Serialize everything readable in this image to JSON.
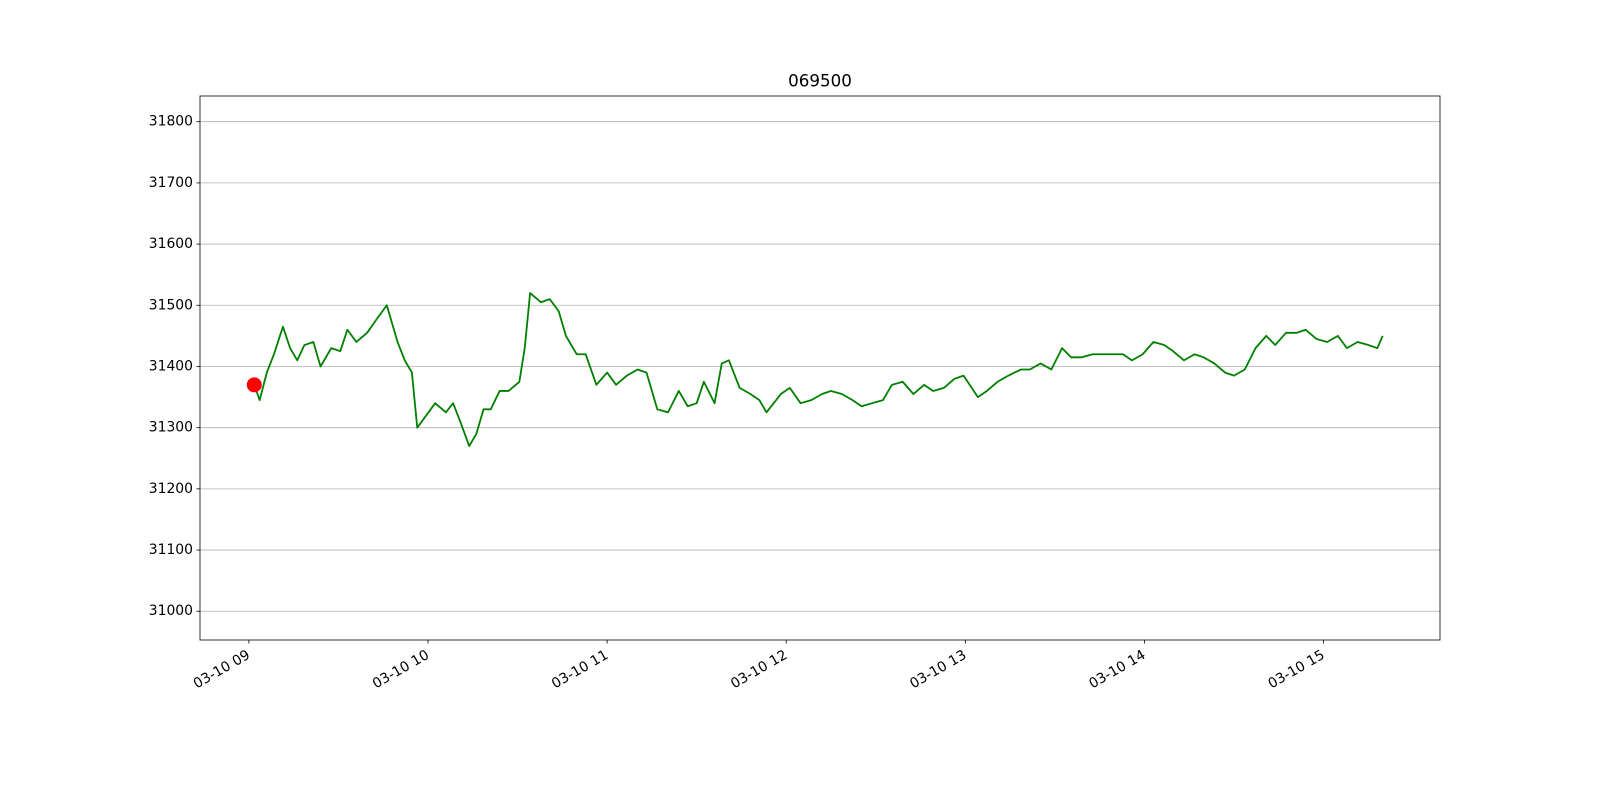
{
  "chart_data": {
    "type": "line",
    "title": "069500",
    "xlim": [
      8.727,
      15.65
    ],
    "xticks": [
      {
        "value": 9,
        "label": "03-10 09"
      },
      {
        "value": 10,
        "label": "03-10 10"
      },
      {
        "value": 11,
        "label": "03-10 11"
      },
      {
        "value": 12,
        "label": "03-10 12"
      },
      {
        "value": 13,
        "label": "03-10 13"
      },
      {
        "value": 14,
        "label": "03-10 14"
      },
      {
        "value": 15,
        "label": "03-10 15"
      }
    ],
    "ylim": [
      30953,
      31842
    ],
    "yticks": [
      31000,
      31100,
      31200,
      31300,
      31400,
      31500,
      31600,
      31700,
      31800
    ],
    "grid": "y",
    "series": [
      {
        "color": "#008000",
        "marker": "none",
        "x": [
          9.03,
          9.06,
          9.1,
          9.14,
          9.19,
          9.23,
          9.27,
          9.31,
          9.36,
          9.4,
          9.46,
          9.51,
          9.55,
          9.6,
          9.66,
          9.72,
          9.77,
          9.83,
          9.87,
          9.91,
          9.94,
          9.99,
          10.04,
          10.1,
          10.14,
          10.18,
          10.23,
          10.27,
          10.31,
          10.35,
          10.4,
          10.45,
          10.51,
          10.54,
          10.57,
          10.63,
          10.68,
          10.73,
          10.77,
          10.83,
          10.88,
          10.94,
          11.0,
          11.05,
          11.11,
          11.17,
          11.22,
          11.28,
          11.34,
          11.4,
          11.45,
          11.5,
          11.54,
          11.6,
          11.64,
          11.68,
          11.74,
          11.8,
          11.85,
          11.89,
          11.97,
          12.02,
          12.08,
          12.14,
          12.2,
          12.25,
          12.31,
          12.37,
          12.42,
          12.48,
          12.54,
          12.59,
          12.65,
          12.71,
          12.77,
          12.82,
          12.88,
          12.94,
          12.99,
          13.07,
          13.12,
          13.18,
          13.24,
          13.31,
          13.36,
          13.42,
          13.48,
          13.54,
          13.59,
          13.65,
          13.71,
          13.76,
          13.82,
          13.88,
          13.93,
          13.99,
          14.05,
          14.11,
          14.16,
          14.22,
          14.28,
          14.33,
          14.39,
          14.45,
          14.5,
          14.56,
          14.62,
          14.68,
          14.73,
          14.79,
          14.85,
          14.9,
          14.96,
          15.02,
          15.08,
          15.13,
          15.19,
          15.25,
          15.3,
          15.33
        ],
        "values": [
          31370,
          31345,
          31390,
          31420,
          31465,
          31430,
          31410,
          31435,
          31440,
          31400,
          31430,
          31425,
          31460,
          31440,
          31455,
          31480,
          31500,
          31440,
          31410,
          31390,
          31300,
          31320,
          31340,
          31325,
          31340,
          31310,
          31270,
          31290,
          31330,
          31330,
          31360,
          31360,
          31375,
          31430,
          31520,
          31505,
          31510,
          31490,
          31450,
          31420,
          31420,
          31370,
          31390,
          31370,
          31385,
          31395,
          31390,
          31330,
          31325,
          31360,
          31335,
          31340,
          31375,
          31340,
          31405,
          31410,
          31365,
          31355,
          31345,
          31325,
          31355,
          31365,
          31340,
          31345,
          31355,
          31360,
          31355,
          31345,
          31335,
          31340,
          31345,
          31370,
          31375,
          31355,
          31370,
          31360,
          31365,
          31380,
          31385,
          31350,
          31360,
          31375,
          31385,
          31395,
          31395,
          31405,
          31395,
          31430,
          31415,
          31415,
          31420,
          31420,
          31420,
          31420,
          31410,
          31420,
          31440,
          31435,
          31425,
          31410,
          31420,
          31415,
          31405,
          31390,
          31385,
          31395,
          31430,
          31450,
          31435,
          31455,
          31455,
          31460,
          31445,
          31440,
          31450,
          31430,
          31440,
          31435,
          31430,
          31450
        ]
      },
      {
        "color": "#ff0000",
        "marker": "circle",
        "x": [
          9.03
        ],
        "values": [
          31370
        ]
      }
    ]
  }
}
